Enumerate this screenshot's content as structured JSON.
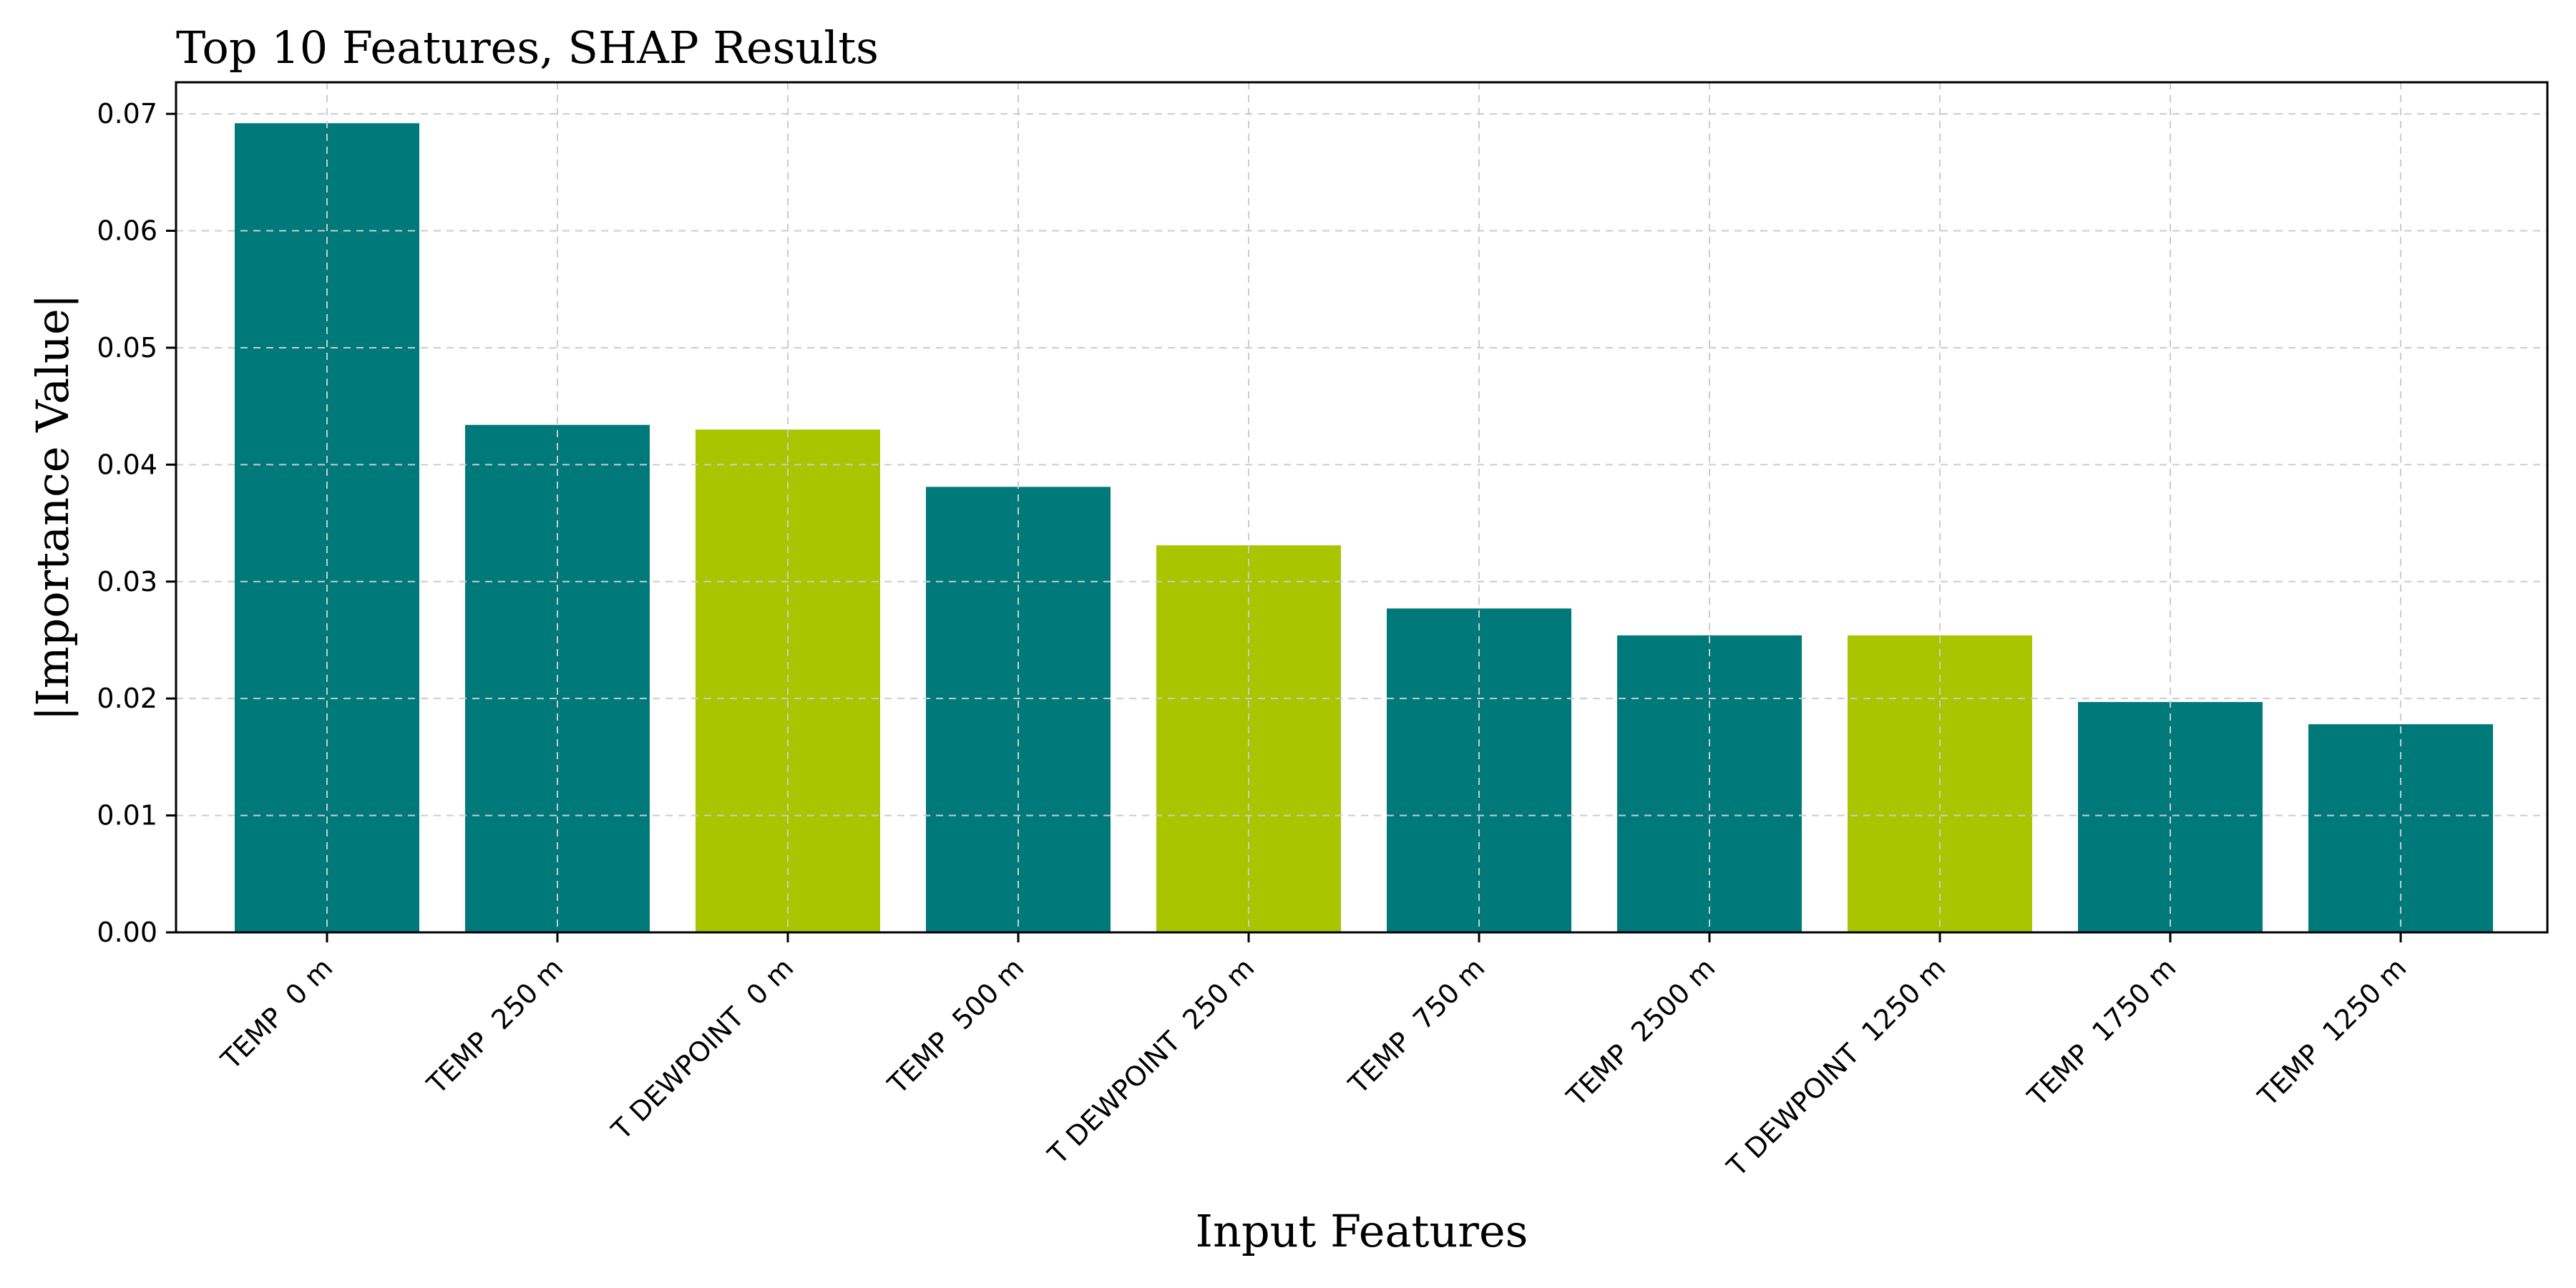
{
  "chart_data": {
    "type": "bar",
    "title": "Top 10 Features, SHAP Results",
    "xlabel": "Input Features",
    "ylabel": "|Importance Value|",
    "categories": [
      "TEMP  0 m",
      "TEMP  250 m",
      "T DEWPOINT  0 m",
      "TEMP  500 m",
      "T DEWPOINT  250 m",
      "TEMP  750 m",
      "TEMP  2500 m",
      "T DEWPOINT  1250 m",
      "TEMP  1750 m",
      "TEMP  1250 m"
    ],
    "values": [
      0.0692,
      0.0434,
      0.043,
      0.0381,
      0.0331,
      0.0277,
      0.0254,
      0.0254,
      0.0197,
      0.0178
    ],
    "bar_colors": [
      "#00797b",
      "#00797b",
      "#a8c500",
      "#00797b",
      "#a8c500",
      "#00797b",
      "#00797b",
      "#a8c500",
      "#00797b",
      "#00797b"
    ],
    "ylim": [
      0,
      0.0727
    ],
    "yticks": [
      "0.00",
      "0.01",
      "0.02",
      "0.03",
      "0.04",
      "0.05",
      "0.06",
      "0.07"
    ],
    "grid": true,
    "legend": "none"
  }
}
